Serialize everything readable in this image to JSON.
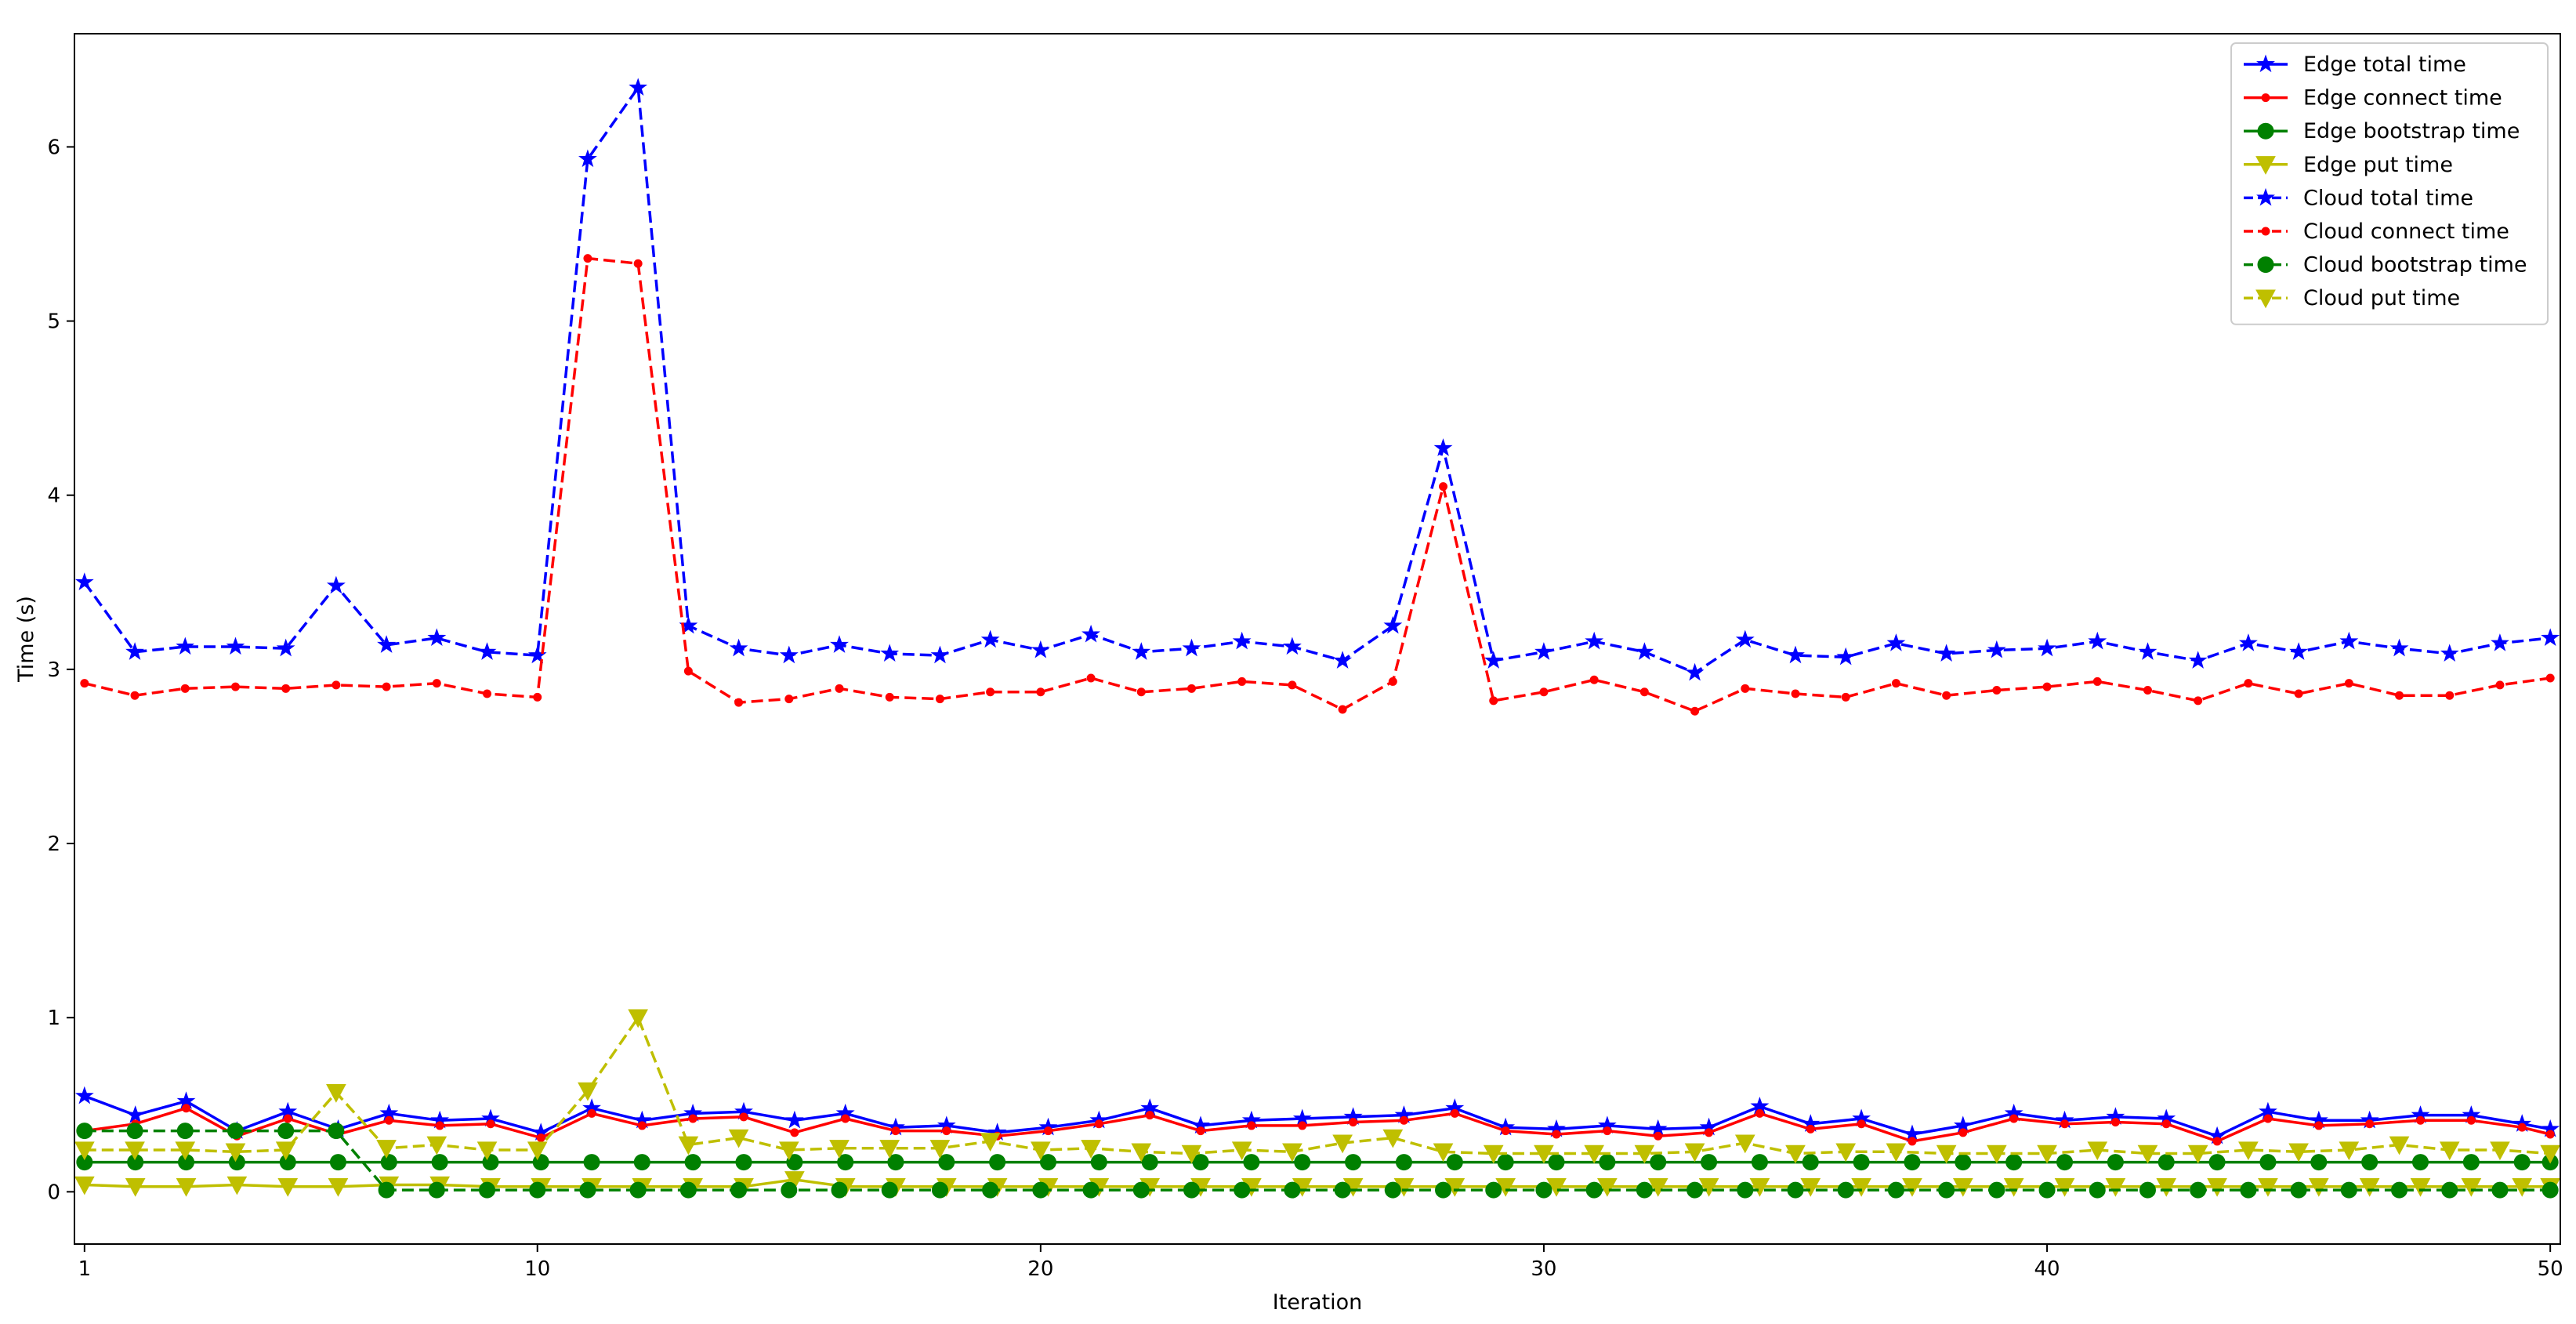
{
  "chart_data": {
    "type": "line",
    "xlabel": "Iteration",
    "ylabel": "Time (s)",
    "xlim": [
      0.8,
      50.2
    ],
    "ylim": [
      -0.3,
      6.65
    ],
    "xticks": [
      1,
      10,
      20,
      30,
      40,
      50
    ],
    "yticks": [
      0,
      1,
      2,
      3,
      4,
      5,
      6
    ],
    "grid": false,
    "legend_position": "top-right",
    "series": [
      {
        "name": "Edge total time",
        "color": "#0000ff",
        "linestyle": "solid",
        "marker": "star",
        "x": [
          1.0,
          2.01,
          3.02,
          4.03,
          5.04,
          6.04,
          7.05,
          8.06,
          9.07,
          10.07,
          11.08,
          12.08,
          13.09,
          14.1,
          15.11,
          16.12,
          17.12,
          18.13,
          19.14,
          20.15,
          21.16,
          22.17,
          23.18,
          24.19,
          25.2,
          26.21,
          27.22,
          28.23,
          29.24,
          30.25,
          31.26,
          32.27,
          33.28,
          34.29,
          35.3,
          36.31,
          37.32,
          38.33,
          39.34,
          40.35,
          41.36,
          42.37,
          43.38,
          44.39,
          45.4,
          46.41,
          47.42,
          48.43,
          49.44,
          50.0
        ],
        "y": [
          0.55,
          0.44,
          0.52,
          0.35,
          0.46,
          0.36,
          0.45,
          0.41,
          0.42,
          0.34,
          0.48,
          0.41,
          0.45,
          0.46,
          0.41,
          0.45,
          0.37,
          0.38,
          0.34,
          0.37,
          0.41,
          0.48,
          0.38,
          0.41,
          0.42,
          0.43,
          0.44,
          0.48,
          0.37,
          0.36,
          0.38,
          0.36,
          0.37,
          0.49,
          0.39,
          0.42,
          0.33,
          0.38,
          0.45,
          0.41,
          0.43,
          0.42,
          0.32,
          0.46,
          0.41,
          0.41,
          0.44,
          0.44,
          0.39,
          0.36
        ]
      },
      {
        "name": "Edge connect time",
        "color": "#ff0000",
        "linestyle": "solid",
        "marker": "point",
        "x": [
          1.0,
          2.01,
          3.02,
          4.03,
          5.04,
          6.04,
          7.05,
          8.06,
          9.07,
          10.07,
          11.08,
          12.08,
          13.09,
          14.1,
          15.11,
          16.12,
          17.12,
          18.13,
          19.14,
          20.15,
          21.16,
          22.17,
          23.18,
          24.19,
          25.2,
          26.21,
          27.22,
          28.23,
          29.24,
          30.25,
          31.26,
          32.27,
          33.28,
          34.29,
          35.3,
          36.31,
          37.32,
          38.33,
          39.34,
          40.35,
          41.36,
          42.37,
          43.38,
          44.39,
          45.4,
          46.41,
          47.42,
          48.43,
          49.44,
          50.0
        ],
        "y": [
          0.35,
          0.39,
          0.48,
          0.32,
          0.42,
          0.33,
          0.41,
          0.38,
          0.39,
          0.31,
          0.45,
          0.38,
          0.42,
          0.43,
          0.34,
          0.42,
          0.35,
          0.35,
          0.32,
          0.35,
          0.39,
          0.44,
          0.35,
          0.38,
          0.38,
          0.4,
          0.41,
          0.45,
          0.35,
          0.33,
          0.35,
          0.32,
          0.34,
          0.45,
          0.36,
          0.39,
          0.29,
          0.34,
          0.42,
          0.39,
          0.4,
          0.39,
          0.29,
          0.42,
          0.38,
          0.39,
          0.41,
          0.41,
          0.37,
          0.33
        ]
      },
      {
        "name": "Edge bootstrap time",
        "color": "#008000",
        "linestyle": "solid",
        "marker": "circle",
        "x": [
          1.0,
          2.01,
          3.02,
          4.03,
          5.04,
          6.04,
          7.05,
          8.06,
          9.07,
          10.07,
          11.08,
          12.08,
          13.09,
          14.1,
          15.11,
          16.12,
          17.12,
          18.13,
          19.14,
          20.15,
          21.16,
          22.17,
          23.18,
          24.19,
          25.2,
          26.21,
          27.22,
          28.23,
          29.24,
          30.25,
          31.26,
          32.27,
          33.28,
          34.29,
          35.3,
          36.31,
          37.32,
          38.33,
          39.34,
          40.35,
          41.36,
          42.37,
          43.38,
          44.39,
          45.4,
          46.41,
          47.42,
          48.43,
          49.44,
          50.0
        ],
        "y": [
          0.17,
          0.17,
          0.17,
          0.17,
          0.17,
          0.17,
          0.17,
          0.17,
          0.17,
          0.17,
          0.17,
          0.17,
          0.17,
          0.17,
          0.17,
          0.17,
          0.17,
          0.17,
          0.17,
          0.17,
          0.17,
          0.17,
          0.17,
          0.17,
          0.17,
          0.17,
          0.17,
          0.17,
          0.17,
          0.17,
          0.17,
          0.17,
          0.17,
          0.17,
          0.17,
          0.17,
          0.17,
          0.17,
          0.17,
          0.17,
          0.17,
          0.17,
          0.17,
          0.17,
          0.17,
          0.17,
          0.17,
          0.17,
          0.17,
          0.17
        ]
      },
      {
        "name": "Edge put time",
        "color": "#bfbf00",
        "linestyle": "solid",
        "marker": "triangle-down",
        "x": [
          1.0,
          2.01,
          3.02,
          4.03,
          5.04,
          6.04,
          7.05,
          8.06,
          9.07,
          10.07,
          11.08,
          12.08,
          13.09,
          14.1,
          15.11,
          16.12,
          17.12,
          18.13,
          19.14,
          20.15,
          21.16,
          22.17,
          23.18,
          24.19,
          25.2,
          26.21,
          27.22,
          28.23,
          29.24,
          30.25,
          31.26,
          32.27,
          33.28,
          34.29,
          35.3,
          36.31,
          37.32,
          38.33,
          39.34,
          40.35,
          41.36,
          42.37,
          43.38,
          44.39,
          45.4,
          46.41,
          47.42,
          48.43,
          49.44,
          50.0
        ],
        "y": [
          0.04,
          0.03,
          0.03,
          0.04,
          0.03,
          0.03,
          0.04,
          0.04,
          0.03,
          0.03,
          0.03,
          0.03,
          0.03,
          0.03,
          0.07,
          0.03,
          0.03,
          0.03,
          0.03,
          0.03,
          0.03,
          0.03,
          0.03,
          0.03,
          0.03,
          0.03,
          0.03,
          0.03,
          0.03,
          0.03,
          0.03,
          0.03,
          0.03,
          0.03,
          0.03,
          0.03,
          0.03,
          0.03,
          0.03,
          0.03,
          0.03,
          0.03,
          0.03,
          0.03,
          0.03,
          0.03,
          0.03,
          0.03,
          0.03,
          0.03
        ]
      },
      {
        "name": "Cloud total time",
        "color": "#0000ff",
        "linestyle": "dashed",
        "marker": "star",
        "x": [
          1,
          2,
          3,
          4,
          5,
          6,
          7,
          8,
          9,
          10,
          11,
          12,
          13,
          14,
          15,
          16,
          17,
          18,
          19,
          20,
          21,
          22,
          23,
          24,
          25,
          26,
          27,
          28,
          29,
          30,
          31,
          32,
          33,
          34,
          35,
          36,
          37,
          38,
          39,
          40,
          41,
          42,
          43,
          44,
          45,
          46,
          47,
          48,
          49,
          50
        ],
        "y": [
          3.5,
          3.1,
          3.13,
          3.13,
          3.12,
          3.48,
          3.14,
          3.18,
          3.1,
          3.08,
          5.93,
          6.34,
          3.25,
          3.12,
          3.08,
          3.14,
          3.09,
          3.08,
          3.17,
          3.11,
          3.2,
          3.1,
          3.12,
          3.16,
          3.13,
          3.05,
          3.25,
          4.27,
          3.05,
          3.1,
          3.16,
          3.1,
          2.98,
          3.17,
          3.08,
          3.07,
          3.15,
          3.09,
          3.11,
          3.12,
          3.16,
          3.1,
          3.05,
          3.15,
          3.1,
          3.16,
          3.12,
          3.09,
          3.15,
          3.18
        ]
      },
      {
        "name": "Cloud connect time",
        "color": "#ff0000",
        "linestyle": "dashed",
        "marker": "point",
        "x": [
          1,
          2,
          3,
          4,
          5,
          6,
          7,
          8,
          9,
          10,
          11,
          12,
          13,
          14,
          15,
          16,
          17,
          18,
          19,
          20,
          21,
          22,
          23,
          24,
          25,
          26,
          27,
          28,
          29,
          30,
          31,
          32,
          33,
          34,
          35,
          36,
          37,
          38,
          39,
          40,
          41,
          42,
          43,
          44,
          45,
          46,
          47,
          48,
          49,
          50
        ],
        "y": [
          2.92,
          2.85,
          2.89,
          2.9,
          2.89,
          2.91,
          2.9,
          2.92,
          2.86,
          2.84,
          5.36,
          5.33,
          2.99,
          2.81,
          2.83,
          2.89,
          2.84,
          2.83,
          2.87,
          2.87,
          2.95,
          2.87,
          2.89,
          2.93,
          2.91,
          2.77,
          2.93,
          4.05,
          2.82,
          2.87,
          2.94,
          2.87,
          2.76,
          2.89,
          2.86,
          2.84,
          2.92,
          2.85,
          2.88,
          2.9,
          2.93,
          2.88,
          2.82,
          2.92,
          2.86,
          2.92,
          2.85,
          2.85,
          2.91,
          2.95
        ]
      },
      {
        "name": "Cloud bootstrap time",
        "color": "#008000",
        "linestyle": "dashed",
        "marker": "circle",
        "x": [
          1,
          2,
          3,
          4,
          5,
          6,
          7,
          8,
          9,
          10,
          11,
          12,
          13,
          14,
          15,
          16,
          17,
          18,
          19,
          20,
          21,
          22,
          23,
          24,
          25,
          26,
          27,
          28,
          29,
          30,
          31,
          32,
          33,
          34,
          35,
          36,
          37,
          38,
          39,
          40,
          41,
          42,
          43,
          44,
          45,
          46,
          47,
          48,
          49,
          50
        ],
        "y": [
          0.35,
          0.35,
          0.35,
          0.35,
          0.35,
          0.35,
          0.01,
          0.01,
          0.01,
          0.01,
          0.01,
          0.01,
          0.01,
          0.01,
          0.01,
          0.01,
          0.01,
          0.01,
          0.01,
          0.01,
          0.01,
          0.01,
          0.01,
          0.01,
          0.01,
          0.01,
          0.01,
          0.01,
          0.01,
          0.01,
          0.01,
          0.01,
          0.01,
          0.01,
          0.01,
          0.01,
          0.01,
          0.01,
          0.01,
          0.01,
          0.01,
          0.01,
          0.01,
          0.01,
          0.01,
          0.01,
          0.01,
          0.01,
          0.01,
          0.01
        ]
      },
      {
        "name": "Cloud put time",
        "color": "#bfbf00",
        "linestyle": "dashed",
        "marker": "triangle-down",
        "x": [
          1,
          2,
          3,
          4,
          5,
          6,
          7,
          8,
          9,
          10,
          11,
          12,
          13,
          14,
          15,
          16,
          17,
          18,
          19,
          20,
          21,
          22,
          23,
          24,
          25,
          26,
          27,
          28,
          29,
          30,
          31,
          32,
          33,
          34,
          35,
          36,
          37,
          38,
          39,
          40,
          41,
          42,
          43,
          44,
          45,
          46,
          47,
          48,
          49,
          50
        ],
        "y": [
          0.24,
          0.24,
          0.24,
          0.23,
          0.24,
          0.57,
          0.25,
          0.27,
          0.24,
          0.24,
          0.58,
          1.0,
          0.27,
          0.31,
          0.24,
          0.25,
          0.25,
          0.25,
          0.29,
          0.24,
          0.25,
          0.23,
          0.22,
          0.24,
          0.23,
          0.28,
          0.31,
          0.23,
          0.22,
          0.22,
          0.22,
          0.22,
          0.23,
          0.28,
          0.22,
          0.23,
          0.23,
          0.22,
          0.22,
          0.22,
          0.24,
          0.22,
          0.22,
          0.24,
          0.23,
          0.24,
          0.27,
          0.24,
          0.24,
          0.22
        ]
      }
    ]
  }
}
